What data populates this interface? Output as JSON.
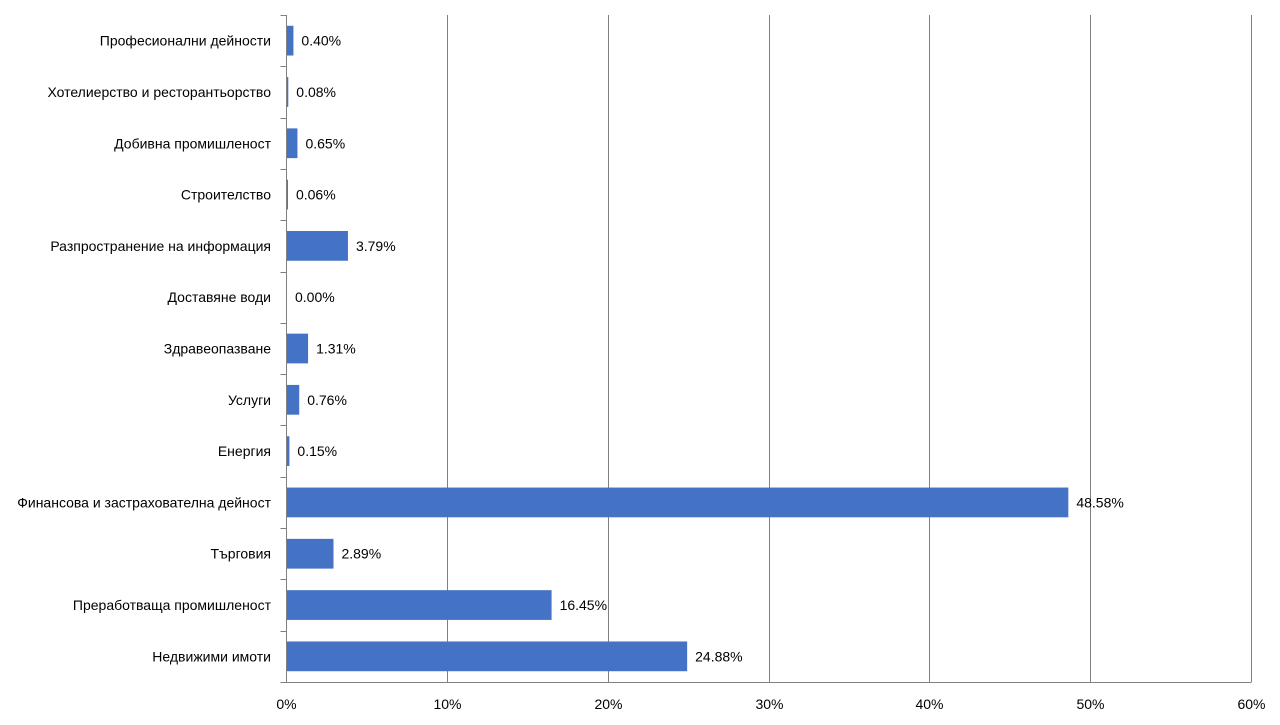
{
  "colors": {
    "bar": "#4472C4",
    "gridline": "#808080",
    "axis": "#808080",
    "background": "#ffffff",
    "text": "#000000"
  },
  "chart_data": {
    "type": "bar",
    "orientation": "horizontal",
    "title": "",
    "xlabel": "",
    "ylabel": "",
    "xlim": [
      0,
      60
    ],
    "x_unit": "%",
    "grid": "vertical major gridlines",
    "legend": "none",
    "x_ticks": [
      0,
      10,
      20,
      30,
      40,
      50,
      60
    ],
    "x_tick_labels": [
      "0%",
      "10%",
      "20%",
      "30%",
      "40%",
      "50%",
      "60%"
    ],
    "categories": [
      "Професионални дейности",
      "Хотелиерство и ресторантьорство",
      "Добивна промишленост",
      "Строителство",
      "Разпространение на информация",
      "Доставяне води",
      "Здравеопазване",
      "Услуги",
      "Енергия",
      "Финансова и застрахователна дейност",
      "Търговия",
      "Преработваща промишленост",
      "Недвижими имоти"
    ],
    "values": [
      0.4,
      0.08,
      0.65,
      0.06,
      3.79,
      0.0,
      1.31,
      0.76,
      0.15,
      48.58,
      2.89,
      16.45,
      24.88
    ],
    "data_labels": [
      "0.40%",
      "0.08%",
      "0.65%",
      "0.06%",
      "3.79%",
      "0.00%",
      "1.31%",
      "0.76%",
      "0.15%",
      "48.58%",
      "2.89%",
      "16.45%",
      "24.88%"
    ]
  }
}
